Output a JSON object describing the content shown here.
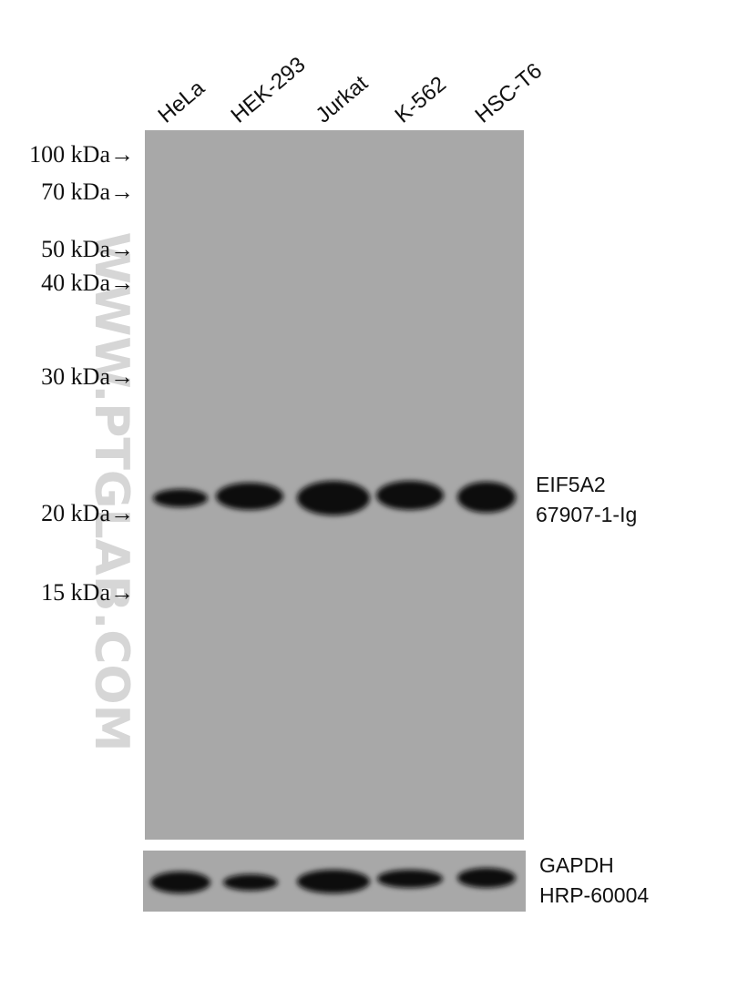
{
  "lanes": [
    "HeLa",
    "HEK-293",
    "Jurkat",
    "K-562",
    "HSC-T6"
  ],
  "markers": [
    "100 kDa→",
    "70 kDa→",
    "50 kDa→",
    "40 kDa→",
    "30 kDa→",
    "20 kDa→",
    "15 kDa→"
  ],
  "target": {
    "name": "EIF5A2",
    "antibody": "67907-1-Ig"
  },
  "control": {
    "name": "GAPDH",
    "antibody": "HRP-60004"
  },
  "watermark": "WWW.PTGLAB.COM"
}
